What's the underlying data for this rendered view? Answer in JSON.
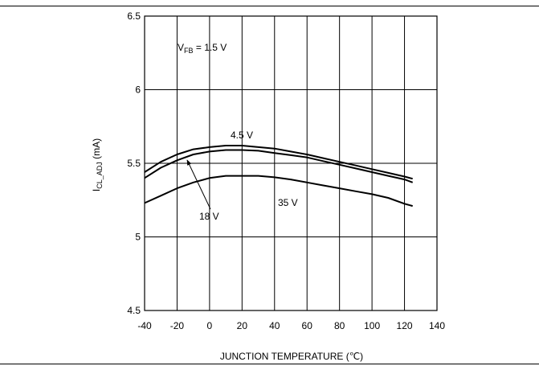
{
  "chart_data": {
    "type": "line",
    "title": "",
    "xlabel": "JUNCTION TEMPERATURE (℃)",
    "ylabel": "I_CL_ADJ (mA)",
    "ylabel_parts": {
      "main": "I",
      "sub": "CL_ADJ",
      "unit": " (mA)"
    },
    "xlim": [
      -40,
      140
    ],
    "ylim": [
      4.5,
      6.5
    ],
    "xticks": [
      -40,
      -20,
      0,
      20,
      40,
      60,
      80,
      100,
      120,
      140
    ],
    "yticks": [
      4.5,
      5,
      5.5,
      6,
      6.5
    ],
    "ytick_labels": [
      "4.5",
      "5",
      "5.5",
      "6",
      "6.5"
    ],
    "grid": true,
    "condition_label": {
      "main": "V",
      "sub": "FB",
      "rest": " = 1.5 V"
    },
    "series": [
      {
        "name": "4.5 V",
        "x": [
          -40,
          -30,
          -20,
          -10,
          0,
          10,
          20,
          30,
          40,
          50,
          60,
          70,
          80,
          90,
          100,
          110,
          120,
          125
        ],
        "y": [
          5.44,
          5.51,
          5.56,
          5.595,
          5.61,
          5.62,
          5.62,
          5.61,
          5.6,
          5.58,
          5.56,
          5.535,
          5.51,
          5.485,
          5.46,
          5.435,
          5.41,
          5.395
        ]
      },
      {
        "name": "18 V",
        "x": [
          -40,
          -30,
          -20,
          -10,
          0,
          10,
          20,
          30,
          40,
          50,
          60,
          70,
          80,
          90,
          100,
          110,
          120,
          125
        ],
        "y": [
          5.4,
          5.47,
          5.52,
          5.56,
          5.58,
          5.59,
          5.59,
          5.585,
          5.57,
          5.555,
          5.54,
          5.515,
          5.49,
          5.465,
          5.44,
          5.415,
          5.39,
          5.37
        ]
      },
      {
        "name": "35 V",
        "x": [
          -40,
          -30,
          -20,
          -10,
          0,
          10,
          20,
          30,
          40,
          50,
          60,
          70,
          80,
          90,
          100,
          110,
          120,
          125
        ],
        "y": [
          5.23,
          5.28,
          5.33,
          5.37,
          5.4,
          5.415,
          5.415,
          5.415,
          5.405,
          5.39,
          5.37,
          5.35,
          5.33,
          5.31,
          5.29,
          5.265,
          5.225,
          5.21
        ]
      }
    ],
    "annotations": [
      {
        "text": "4.5 V",
        "series": "4.5 V"
      },
      {
        "text": "18 V",
        "series": "18 V",
        "arrow": true
      },
      {
        "text": "35 V",
        "series": "35 V"
      }
    ]
  }
}
